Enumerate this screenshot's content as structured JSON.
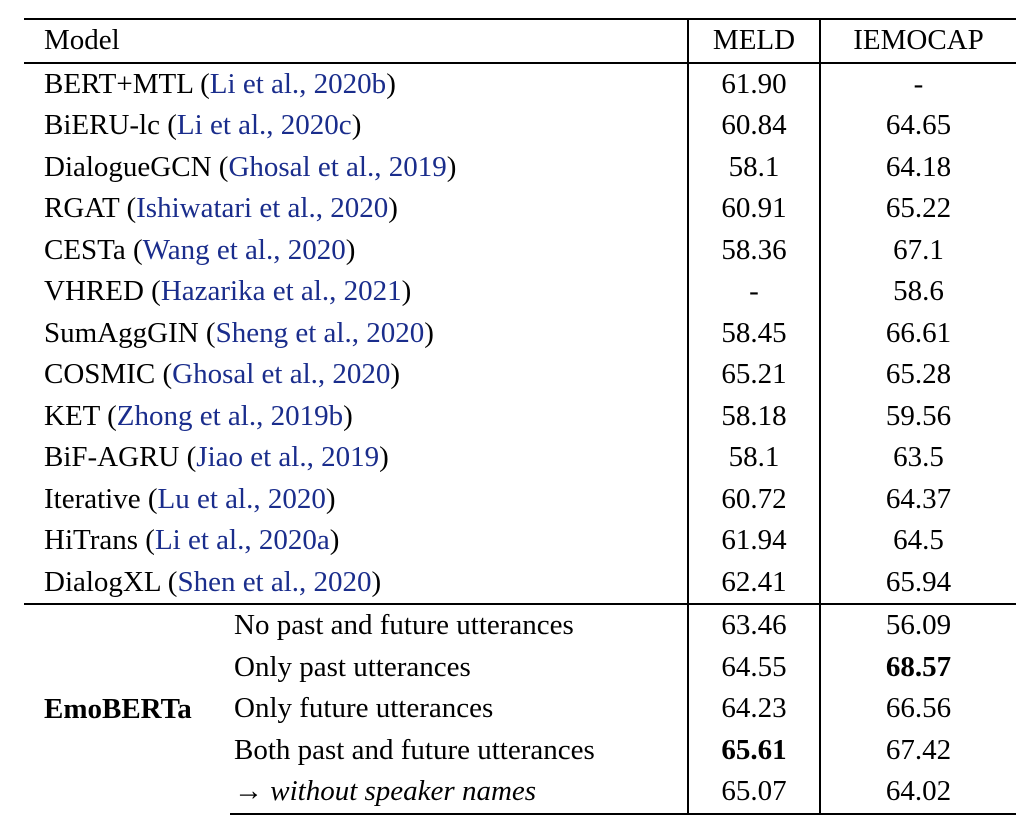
{
  "header": {
    "model": "Model",
    "meld": "MELD",
    "iemocap": "IEMOCAP"
  },
  "rows": [
    {
      "name": "BERT+MTL",
      "cite": "Li et al., 2020b",
      "meld": "61.90",
      "iemocap": "-"
    },
    {
      "name": "BiERU-lc",
      "cite": "Li et al., 2020c",
      "meld": "60.84",
      "iemocap": "64.65"
    },
    {
      "name": "DialogueGCN",
      "cite": "Ghosal et al., 2019",
      "meld": "58.1",
      "iemocap": "64.18"
    },
    {
      "name": "RGAT",
      "cite": "Ishiwatari et al., 2020",
      "meld": "60.91",
      "iemocap": "65.22"
    },
    {
      "name": "CESTa",
      "cite": "Wang et al., 2020",
      "meld": "58.36",
      "iemocap": "67.1"
    },
    {
      "name": "VHRED",
      "cite": "Hazarika et al., 2021",
      "meld": "-",
      "iemocap": "58.6"
    },
    {
      "name": "SumAggGIN",
      "cite": "Sheng et al., 2020",
      "meld": "58.45",
      "iemocap": "66.61"
    },
    {
      "name": "COSMIC",
      "cite": "Ghosal et al., 2020",
      "meld": "65.21",
      "iemocap": "65.28"
    },
    {
      "name": "KET",
      "cite": "Zhong et al., 2019b",
      "meld": "58.18",
      "iemocap": "59.56"
    },
    {
      "name": "BiF-AGRU",
      "cite": "Jiao et al., 2019",
      "meld": "58.1",
      "iemocap": "63.5"
    },
    {
      "name": "Iterative",
      "cite": "Lu et al., 2020",
      "meld": "60.72",
      "iemocap": "64.37"
    },
    {
      "name": "HiTrans",
      "cite": "Li et al., 2020a",
      "meld": "61.94",
      "iemocap": "64.5"
    },
    {
      "name": "DialogXL",
      "cite": "Shen et al., 2020",
      "meld": "62.41",
      "iemocap": "65.94"
    }
  ],
  "emoberta": {
    "label": "EmoBERTa",
    "variants": [
      {
        "setting": "No past and future utterances",
        "meld": "63.46",
        "iemocap": "56.09"
      },
      {
        "setting": "Only past utterances",
        "meld": "64.55",
        "iemocap": "68.57"
      },
      {
        "setting": "Only future utterances",
        "meld": "64.23",
        "iemocap": "66.56"
      },
      {
        "setting": "Both past and future utterances",
        "meld": "65.61",
        "iemocap": "67.42"
      },
      {
        "setting": "→ without speaker names",
        "meld": "65.07",
        "iemocap": "64.02"
      }
    ]
  }
}
